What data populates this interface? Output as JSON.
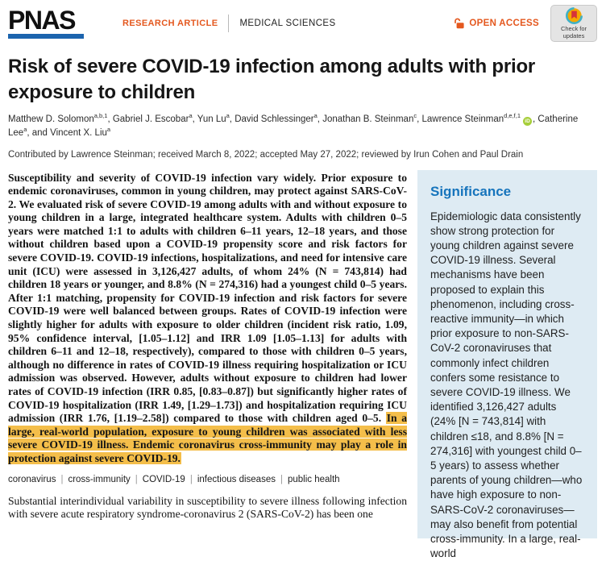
{
  "header": {
    "brand": "PNAS",
    "article_type": "RESEARCH ARTICLE",
    "section": "MEDICAL SCIENCES",
    "open_access_label": "OPEN ACCESS",
    "check_updates_line1": "Check for",
    "check_updates_line2": "updates"
  },
  "article": {
    "title": "Risk of severe COVID-19 infection among adults with prior exposure to children",
    "contributed_line": "Contributed by Lawrence Steinman; received March 8, 2022; accepted May 27, 2022; reviewed by Irun Cohen and Paul Drain"
  },
  "authors": {
    "conjunction": "and",
    "list": [
      {
        "name": "Matthew D. Solomon",
        "sup": "a,b,1"
      },
      {
        "name": "Gabriel J. Escobar",
        "sup": "a"
      },
      {
        "name": "Yun Lu",
        "sup": "a"
      },
      {
        "name": "David Schlessinger",
        "sup": "a"
      },
      {
        "name": "Jonathan B. Steinman",
        "sup": "c"
      },
      {
        "name": "Lawrence Steinman",
        "sup": "d,e,f,1",
        "orcid": true
      },
      {
        "name": "Catherine Lee",
        "sup": "a"
      },
      {
        "name": "Vincent X. Liu",
        "sup": "a"
      }
    ],
    "orcid_icon_label": "iD"
  },
  "abstract": {
    "text_plain": "Susceptibility and severity of COVID-19 infection vary widely. Prior exposure to endemic coronaviruses, common in young children, may protect against SARS-CoV-2. We evaluated risk of severe COVID-19 among adults with and without exposure to young children in a large, integrated healthcare system. Adults with children 0–5 years were matched 1:1 to adults with children 6–11 years, 12–18 years, and those without children based upon a COVID-19 propensity score and risk factors for severe COVID-19. COVID-19 infections, hospitalizations, and need for intensive care unit (ICU) were assessed in 3,126,427 adults, of whom 24% (N = 743,814) had children 18 years or younger, and 8.8% (N = 274,316) had a youngest child 0–5 years. After 1:1 matching, propensity for COVID-19 infection and risk factors for severe COVID-19 were well balanced between groups. Rates of COVID-19 infection were slightly higher for adults with exposure to older children (incident risk ratio, 1.09, 95% confidence interval, [1.05–1.12] and IRR 1.09 [1.05–1.13] for adults with children 6–11 and 12–18, respectively), compared to those with children 0–5 years, although no difference in rates of COVID-19 illness requiring hospitalization or ICU admission was observed. However, adults without exposure to children had lower rates of COVID-19 infection (IRR 0.85, [0.83–0.87]) but significantly higher rates of COVID-19 hospitalization (IRR 1.49, [1.29–1.73]) and hospitalization requiring ICU admission (IRR 1.76, [1.19–2.58]) compared to those with children aged 0–5. ",
    "text_highlighted": "In a large, real-world population, exposure to young children was associated with less severe COVID-19 illness. Endemic coronavirus cross-immunity may play a role in protection against severe COVID-19."
  },
  "keywords": [
    "coronavirus",
    "cross-immunity",
    "COVID-19",
    "infectious diseases",
    "public health"
  ],
  "body": {
    "intro_paragraph": "Substantial interindividual variability in susceptibility to severe illness following infection with severe acute respiratory syndrome-coronavirus 2 (SARS-CoV-2) has been one"
  },
  "significance": {
    "heading": "Significance",
    "text": "Epidemiologic data consistently show strong protection for young children against severe COVID-19 illness. Several mechanisms have been proposed to explain this phenomenon, including cross-reactive immunity—in which prior exposure to non-SARS-CoV-2 coronaviruses that commonly infect children confers some resistance to severe COVID-19 illness. We identified 3,126,427 adults (24% [N = 743,814] with children ≤18, and 8.8% [N = 274,316] with youngest child 0–5 years) to assess whether parents of young children—who have high exposure to non-SARS-CoV-2 coronaviruses—may also benefit from potential cross-immunity. In a large, real-world"
  },
  "colors": {
    "accent_orange": "#E4581F",
    "pnas_blue": "#1C64AE",
    "significance_blue": "#1674BC",
    "sidebar_bg": "#DEEBF3",
    "highlight": "#F4BE4A",
    "orcid_green": "#A6CE39"
  }
}
